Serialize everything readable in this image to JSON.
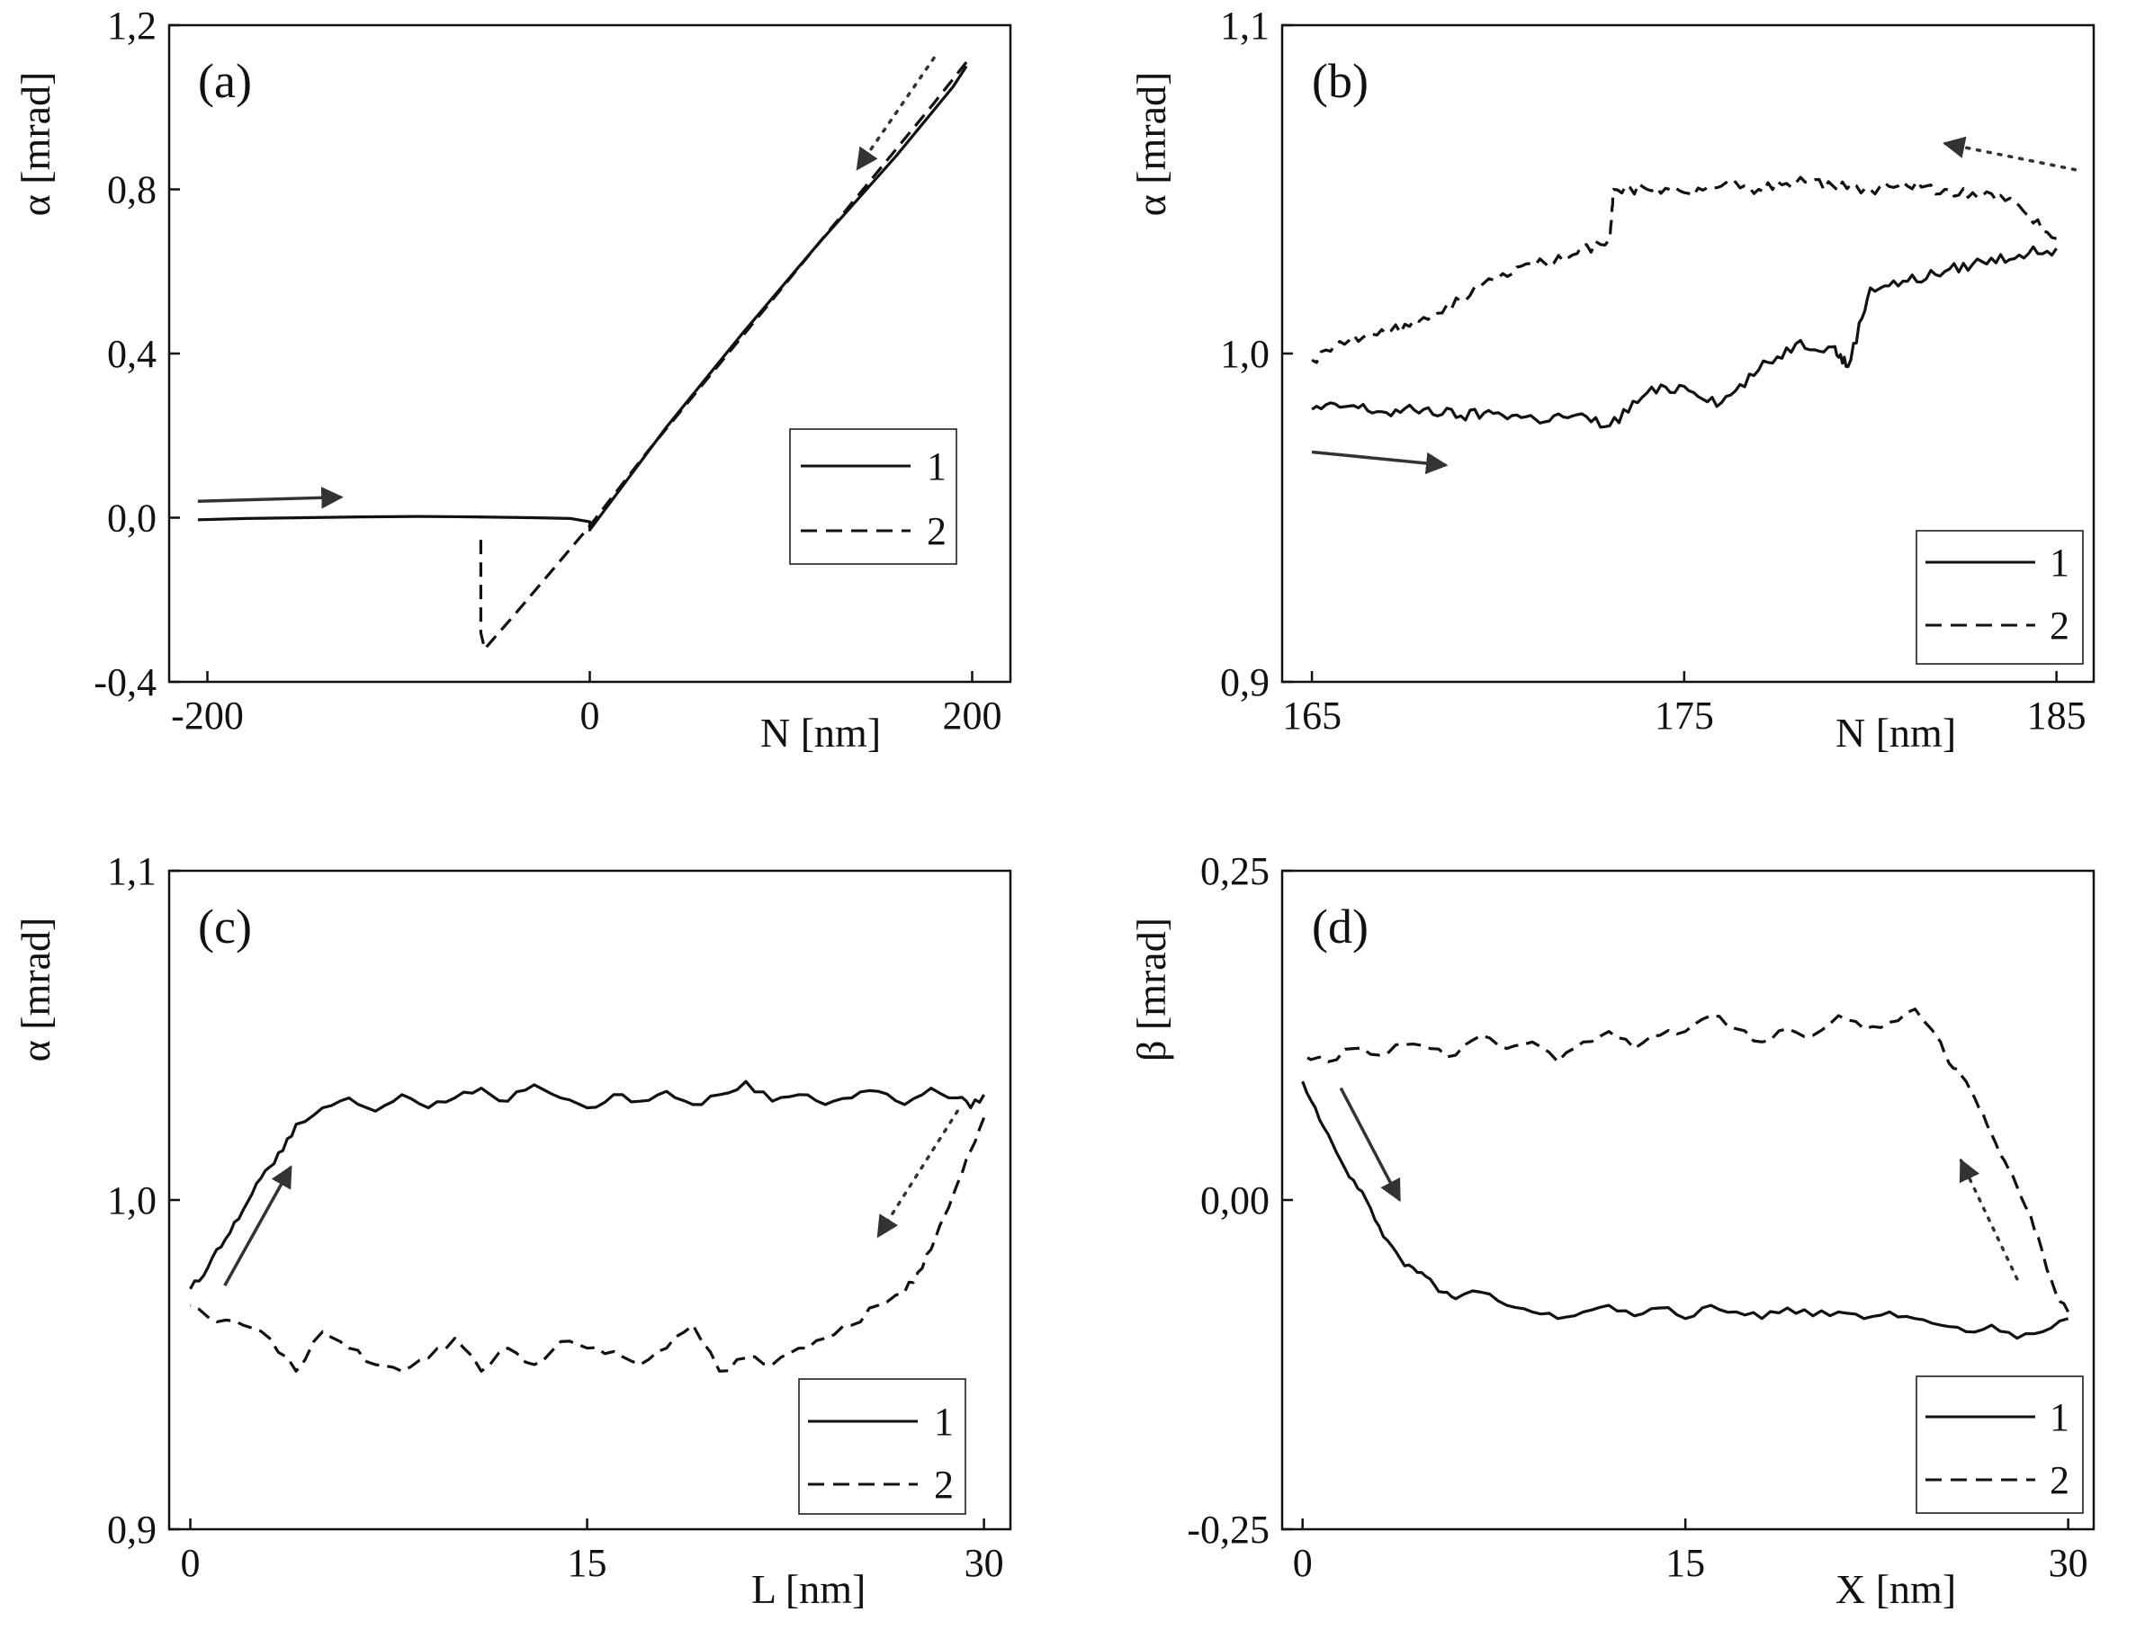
{
  "chart_data": [
    {
      "id": "a",
      "type": "line",
      "panel_label": "(a)",
      "xlabel": "N [nm]",
      "ylabel": "α [mrad]",
      "xlim": [
        -220,
        220
      ],
      "ylim": [
        -0.4,
        1.2
      ],
      "xticks": [
        -200,
        0,
        200
      ],
      "xtick_labels": [
        "-200",
        "0",
        "200"
      ],
      "yticks": [
        -0.4,
        0.0,
        0.4,
        0.8,
        1.2
      ],
      "ytick_labels": [
        "-0,4",
        "0,0",
        "0,4",
        "0,8",
        "1,2"
      ],
      "legend": [
        "1",
        "2"
      ],
      "legend_position": "right",
      "series": [
        {
          "name": "1",
          "style": "solid",
          "x": [
            -205,
            -180,
            -150,
            -120,
            -90,
            -60,
            -30,
            -10,
            0,
            0,
            40,
            80,
            120,
            160,
            190,
            197
          ],
          "y": [
            -0.005,
            -0.002,
            0.0,
            0.002,
            0.003,
            0.002,
            0.0,
            -0.002,
            -0.01,
            -0.03,
            0.22,
            0.45,
            0.67,
            0.88,
            1.05,
            1.1
          ]
        },
        {
          "name": "2",
          "style": "dashed",
          "x": [
            197,
            180,
            150,
            120,
            90,
            60,
            30,
            0,
            -20,
            -40,
            -55,
            -57,
            -57
          ],
          "y": [
            1.11,
            1.01,
            0.84,
            0.67,
            0.5,
            0.33,
            0.16,
            -0.02,
            -0.13,
            -0.24,
            -0.32,
            -0.28,
            -0.04
          ]
        }
      ],
      "arrows": [
        {
          "style": "solid",
          "from": [
            -205,
            0.04
          ],
          "to": [
            -130,
            0.05
          ]
        },
        {
          "style": "dotted",
          "from": [
            180,
            1.12
          ],
          "to": [
            140,
            0.85
          ]
        }
      ]
    },
    {
      "id": "b",
      "type": "line",
      "panel_label": "(b)",
      "xlabel": "N [nm]",
      "ylabel": "α [mrad]",
      "xlim": [
        164.2,
        186
      ],
      "ylim": [
        0.9,
        1.1
      ],
      "xticks": [
        165,
        175,
        185
      ],
      "xtick_labels": [
        "165",
        "175",
        "185"
      ],
      "yticks": [
        0.9,
        1.0,
        1.1
      ],
      "ytick_labels": [
        "0,9",
        "1,0",
        "1,1"
      ],
      "legend": [
        "1",
        "2"
      ],
      "legend_position": "bottom-right",
      "series": [
        {
          "name": "1",
          "style": "solid",
          "x": [
            165,
            166,
            167,
            168,
            169,
            170,
            171,
            172,
            173,
            174,
            175,
            176,
            177,
            178,
            179,
            179.4,
            180,
            181,
            182,
            183,
            184,
            185
          ],
          "y": [
            0.983,
            0.984,
            0.982,
            0.983,
            0.981,
            0.982,
            0.98,
            0.981,
            0.978,
            0.988,
            0.99,
            0.985,
            0.995,
            1.003,
            1.002,
            0.996,
            1.02,
            1.022,
            1.025,
            1.028,
            1.03,
            1.032
          ]
        },
        {
          "name": "2",
          "style": "dashed",
          "x": [
            185,
            184,
            183,
            182,
            181,
            180,
            179,
            178,
            177,
            176,
            175,
            174,
            173.1,
            173,
            172,
            171,
            170,
            169,
            168,
            167,
            166,
            165
          ],
          "y": [
            1.035,
            1.045,
            1.048,
            1.05,
            1.051,
            1.05,
            1.051,
            1.052,
            1.05,
            1.051,
            1.049,
            1.05,
            1.05,
            1.035,
            1.03,
            1.027,
            1.023,
            1.016,
            1.011,
            1.006,
            1.004,
            0.998
          ]
        }
      ],
      "arrows": [
        {
          "style": "solid",
          "from": [
            165,
            0.97
          ],
          "to": [
            168.6,
            0.966
          ]
        },
        {
          "style": "dotted",
          "from": [
            185.5,
            1.056
          ],
          "to": [
            182,
            1.064
          ]
        }
      ]
    },
    {
      "id": "c",
      "type": "line",
      "panel_label": "(c)",
      "xlabel": "L [nm]",
      "ylabel": "α [mrad]",
      "xlim": [
        -0.8,
        31
      ],
      "ylim": [
        0.9,
        1.1
      ],
      "xticks": [
        0,
        15,
        30
      ],
      "xtick_labels": [
        "0",
        "15",
        "30"
      ],
      "yticks": [
        0.9,
        1.0,
        1.1
      ],
      "ytick_labels": [
        "0,9",
        "1,0",
        "1,1"
      ],
      "legend": [
        "1",
        "2"
      ],
      "legend_position": "bottom-right",
      "series": [
        {
          "name": "1",
          "style": "solid",
          "x": [
            0,
            0.5,
            1,
            1.5,
            2,
            2.5,
            3,
            3.5,
            4,
            5,
            6,
            7,
            8,
            9,
            10,
            11,
            12,
            13,
            14,
            15,
            16,
            17,
            18,
            19,
            20,
            21,
            22,
            23,
            24,
            25,
            26,
            27,
            28,
            29,
            29.5,
            30
          ],
          "y": [
            0.973,
            0.977,
            0.985,
            0.99,
            0.997,
            1.005,
            1.01,
            1.015,
            1.023,
            1.028,
            1.031,
            1.027,
            1.032,
            1.028,
            1.031,
            1.034,
            1.03,
            1.035,
            1.031,
            1.028,
            1.032,
            1.03,
            1.033,
            1.029,
            1.032,
            1.036,
            1.03,
            1.032,
            1.029,
            1.031,
            1.033,
            1.029,
            1.034,
            1.031,
            1.028,
            1.032
          ]
        },
        {
          "name": "2",
          "style": "dashed",
          "x": [
            30,
            29.5,
            29,
            28.5,
            28,
            27.5,
            27,
            26,
            25,
            24,
            23,
            22,
            21,
            20,
            19,
            18,
            17,
            16,
            15,
            14,
            13,
            12,
            11,
            10,
            9,
            8,
            7,
            6,
            5,
            4,
            3,
            2,
            1,
            0
          ],
          "y": [
            1.025,
            1.015,
            1.005,
            0.995,
            0.985,
            0.978,
            0.972,
            0.968,
            0.962,
            0.958,
            0.955,
            0.95,
            0.952,
            0.948,
            0.962,
            0.955,
            0.95,
            0.954,
            0.955,
            0.957,
            0.95,
            0.955,
            0.948,
            0.958,
            0.952,
            0.948,
            0.95,
            0.955,
            0.96,
            0.948,
            0.958,
            0.962,
            0.963,
            0.968
          ]
        }
      ],
      "arrows": [
        {
          "style": "solid",
          "from": [
            1.3,
            0.974
          ],
          "to": [
            3.8,
            1.01
          ]
        },
        {
          "style": "dotted",
          "from": [
            29,
            1.027
          ],
          "to": [
            26,
            0.989
          ]
        }
      ]
    },
    {
      "id": "d",
      "type": "line",
      "panel_label": "(d)",
      "xlabel": "X [nm]",
      "ylabel": "β [mrad]",
      "xlim": [
        -0.8,
        31
      ],
      "ylim": [
        -0.25,
        0.25
      ],
      "xticks": [
        0,
        15,
        30
      ],
      "xtick_labels": [
        "0",
        "15",
        "30"
      ],
      "yticks": [
        -0.25,
        0.0,
        0.25
      ],
      "ytick_labels": [
        "-0,25",
        "0,00",
        "0,25"
      ],
      "legend": [
        "1",
        "2"
      ],
      "legend_position": "bottom-right",
      "series": [
        {
          "name": "1",
          "style": "solid",
          "x": [
            0,
            0.5,
            1,
            1.5,
            2,
            2.5,
            3,
            3.5,
            4,
            4.5,
            5,
            5.5,
            6,
            7,
            8,
            9,
            10,
            11,
            12,
            13,
            14,
            15,
            16,
            17,
            18,
            19,
            20,
            21,
            22,
            23,
            24,
            25,
            26,
            27,
            28,
            29,
            30
          ],
          "y": [
            0.09,
            0.07,
            0.05,
            0.03,
            0.015,
            0.0,
            -0.02,
            -0.035,
            -0.05,
            -0.055,
            -0.06,
            -0.07,
            -0.075,
            -0.07,
            -0.08,
            -0.085,
            -0.09,
            -0.085,
            -0.08,
            -0.088,
            -0.082,
            -0.09,
            -0.08,
            -0.085,
            -0.09,
            -0.082,
            -0.088,
            -0.085,
            -0.09,
            -0.085,
            -0.09,
            -0.095,
            -0.1,
            -0.095,
            -0.105,
            -0.1,
            -0.09
          ]
        },
        {
          "name": "2",
          "style": "dashed",
          "x": [
            30,
            29.5,
            29,
            28.5,
            28,
            27.5,
            27,
            26.5,
            26,
            25.5,
            25,
            24,
            23,
            22,
            21,
            20,
            19,
            18,
            17,
            16,
            15,
            14,
            13,
            12,
            11,
            10,
            9,
            8,
            7,
            6,
            5,
            4,
            3,
            2,
            1,
            0
          ],
          "y": [
            -0.085,
            -0.07,
            -0.04,
            -0.01,
            0.01,
            0.03,
            0.05,
            0.07,
            0.09,
            0.1,
            0.12,
            0.145,
            0.135,
            0.13,
            0.14,
            0.125,
            0.13,
            0.12,
            0.13,
            0.14,
            0.128,
            0.125,
            0.115,
            0.128,
            0.12,
            0.105,
            0.12,
            0.115,
            0.125,
            0.11,
            0.115,
            0.118,
            0.11,
            0.115,
            0.105,
            0.11
          ]
        }
      ],
      "arrows": [
        {
          "style": "solid",
          "from": [
            1.5,
            0.085
          ],
          "to": [
            3.8,
            0.0
          ]
        },
        {
          "style": "dotted",
          "from": [
            28,
            -0.06
          ],
          "to": [
            25.8,
            0.03
          ]
        }
      ]
    }
  ]
}
